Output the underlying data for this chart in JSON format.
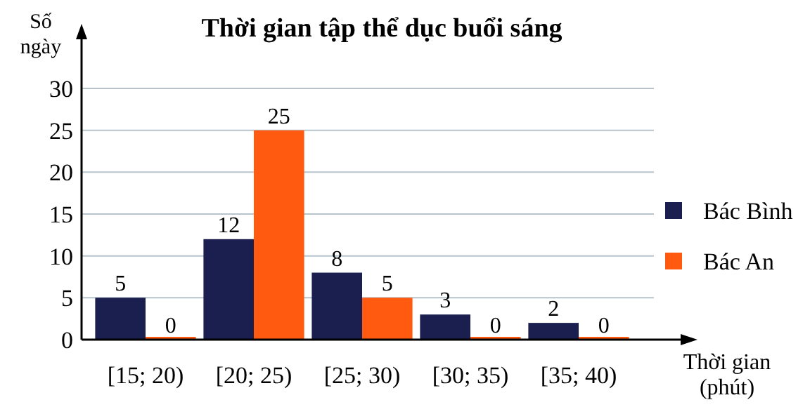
{
  "chart_data": {
    "type": "bar",
    "title": "Thời gian tập thể dục buổi sáng",
    "xlabel": "Thời gian\n(phút)",
    "ylabel": "Số\nngày",
    "categories": [
      "[15; 20)",
      "[20; 25)",
      "[25; 30)",
      "[30; 35)",
      "[35; 40)"
    ],
    "series": [
      {
        "name": "Bác Bình",
        "color": "#1a1f4f",
        "values": [
          5,
          12,
          8,
          3,
          2
        ]
      },
      {
        "name": "Bác An",
        "color": "#ff5a0f",
        "values": [
          0,
          25,
          5,
          0,
          0
        ]
      }
    ],
    "ylim": [
      0,
      30
    ],
    "yticks": [
      0,
      5,
      10,
      15,
      20,
      25,
      30
    ],
    "grid": "y",
    "legend": "right",
    "data_labels": true
  }
}
